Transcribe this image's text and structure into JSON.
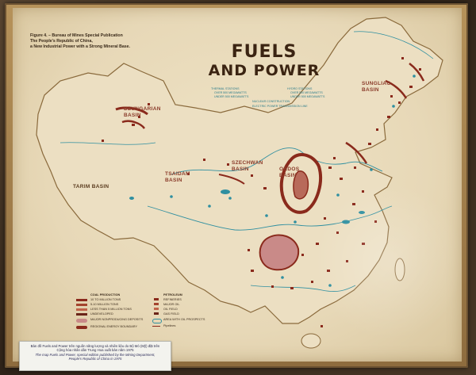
{
  "map": {
    "title_line1": "FUELS",
    "title_line2": "AND POWER",
    "figure_caption": [
      "Figure 4. – Bureau of Mines Special Publication",
      "The People's Republic of China,",
      "a New Industrial Power with a Strong Mineral Base."
    ],
    "basins": {
      "dzungarian": "DZUNGARIAN BASIN",
      "tarim": "TARIM BASIN",
      "tsaidam": "TSAIDAM BASIN",
      "ordos": "ORDOS BASIN",
      "szechwan": "SZECHWAN BASIN",
      "sungliao": "SUNGLIAO BASIN"
    },
    "legend_top": {
      "thermal_header": "THERMAL STATIONS",
      "thermal_a": "OVER 500 MEGAWATTS",
      "thermal_b": "UNDER 500 MEGAWATTS",
      "hydro_header": "HYDRO STATIONS",
      "hydro_a": "OVER 500 MEGAWATTS",
      "hydro_b": "UNDER 500 MEGAWATTS",
      "nuclear": "NUCLEAR CONSTRUCTION",
      "transmission": "ELECTRIC POWER TRANSMISSION LINE"
    },
    "legend_bottom": {
      "coal_header": "COAL PRODUCTION",
      "coal_a": "10 TO MILLION TONS",
      "coal_b": "5-10 MILLION TONS",
      "coal_c": "LESS THAN 5 MILLION TONS",
      "coal_d": "UNDEVELOPED",
      "coal_e": "MAJOR NONPRODUCING DEPOSITS",
      "coal_f": "REGIONAL ENERGY BOUNDARY",
      "petro_header": "PETROLEUM",
      "petro_a": "REFINERIES",
      "petro_b": "MAJOR OIL",
      "petro_c": "OIL FIELD",
      "petro_d": "GAS FIELD",
      "petro_e": "AREA WITH OIL PROSPECTS",
      "petro_f": "Pipelines"
    },
    "colors": {
      "coal": "#8a2a1c",
      "water": "#2f8fa0",
      "land": "#ecdfc2"
    }
  },
  "info_card": {
    "vn_line1": "Bản đồ Fuels and Power trên nguồn năng lượng và nhiên liệu do Bộ Mỏ (Mỹ) đặt trên",
    "vn_line2": "Cộng hòa nhân dân Trung Hoa xuất bản năm 1975",
    "en_line1": "The map Fuels and Power, special edition published by the Mining Department,",
    "en_line2": "People's Republic of China in 1975"
  }
}
